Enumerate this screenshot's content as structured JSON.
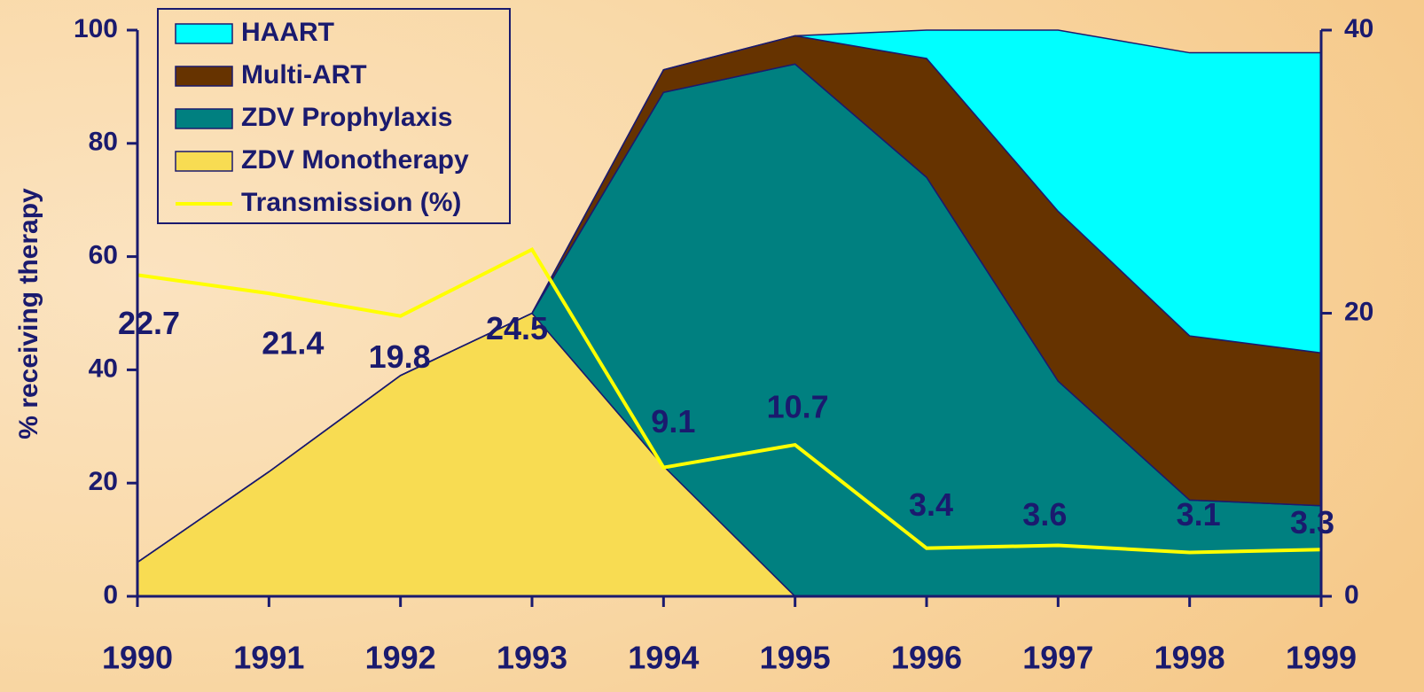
{
  "chart_data": {
    "type": "stacked-area-line",
    "y_label": "% receiving therapy",
    "categories": [
      "1990",
      "1991",
      "1992",
      "1993",
      "1994",
      "1995",
      "1996",
      "1997",
      "1998",
      "1999"
    ],
    "series": [
      {
        "name": "ZDV Monotherapy",
        "color": "#f8dc52",
        "values": [
          6,
          22,
          39,
          50,
          23,
          0,
          0,
          0,
          0,
          0
        ]
      },
      {
        "name": "ZDV Prophylaxis",
        "color": "#008080",
        "values": [
          0,
          0,
          0,
          0,
          66,
          94,
          74,
          38,
          17,
          16
        ]
      },
      {
        "name": "Multi-ART",
        "color": "#663300",
        "values": [
          0,
          0,
          0,
          0,
          4,
          5,
          21,
          30,
          29,
          27
        ]
      },
      {
        "name": "HAART",
        "color": "#00ffff",
        "values": [
          0,
          0,
          0,
          0,
          0,
          0,
          5,
          32,
          50,
          53
        ]
      },
      {
        "name": "Transmission (%)",
        "color": "#ffff00",
        "axis": "y2",
        "type": "line",
        "values": [
          22.7,
          21.4,
          19.8,
          24.5,
          9.1,
          10.7,
          3.4,
          3.6,
          3.1,
          3.3
        ]
      }
    ],
    "ylim": [
      0,
      100
    ],
    "yticks": [
      0,
      20,
      40,
      60,
      80,
      100
    ],
    "y2lim": [
      0,
      40
    ],
    "y2ticks": [
      0,
      20,
      40
    ],
    "legend": "top-left"
  }
}
